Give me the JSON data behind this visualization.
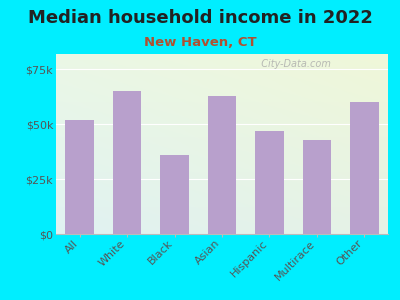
{
  "title": "Median household income in 2022",
  "subtitle": "New Haven, CT",
  "categories": [
    "All",
    "White",
    "Black",
    "Asian",
    "Hispanic",
    "Multirace",
    "Other"
  ],
  "values": [
    52000,
    65000,
    36000,
    63000,
    47000,
    43000,
    60000
  ],
  "bar_color": "#b8a0cc",
  "background_outer": "#00eeff",
  "title_color": "#222222",
  "subtitle_color": "#b05030",
  "tick_label_color": "#555555",
  "yticks": [
    0,
    25000,
    50000,
    75000
  ],
  "ytick_labels": [
    "$0",
    "$25k",
    "$50k",
    "$75k"
  ],
  "ylim": [
    0,
    82000
  ],
  "watermark": "  City-Data.com",
  "title_fontsize": 13,
  "subtitle_fontsize": 9.5,
  "tick_fontsize": 8
}
